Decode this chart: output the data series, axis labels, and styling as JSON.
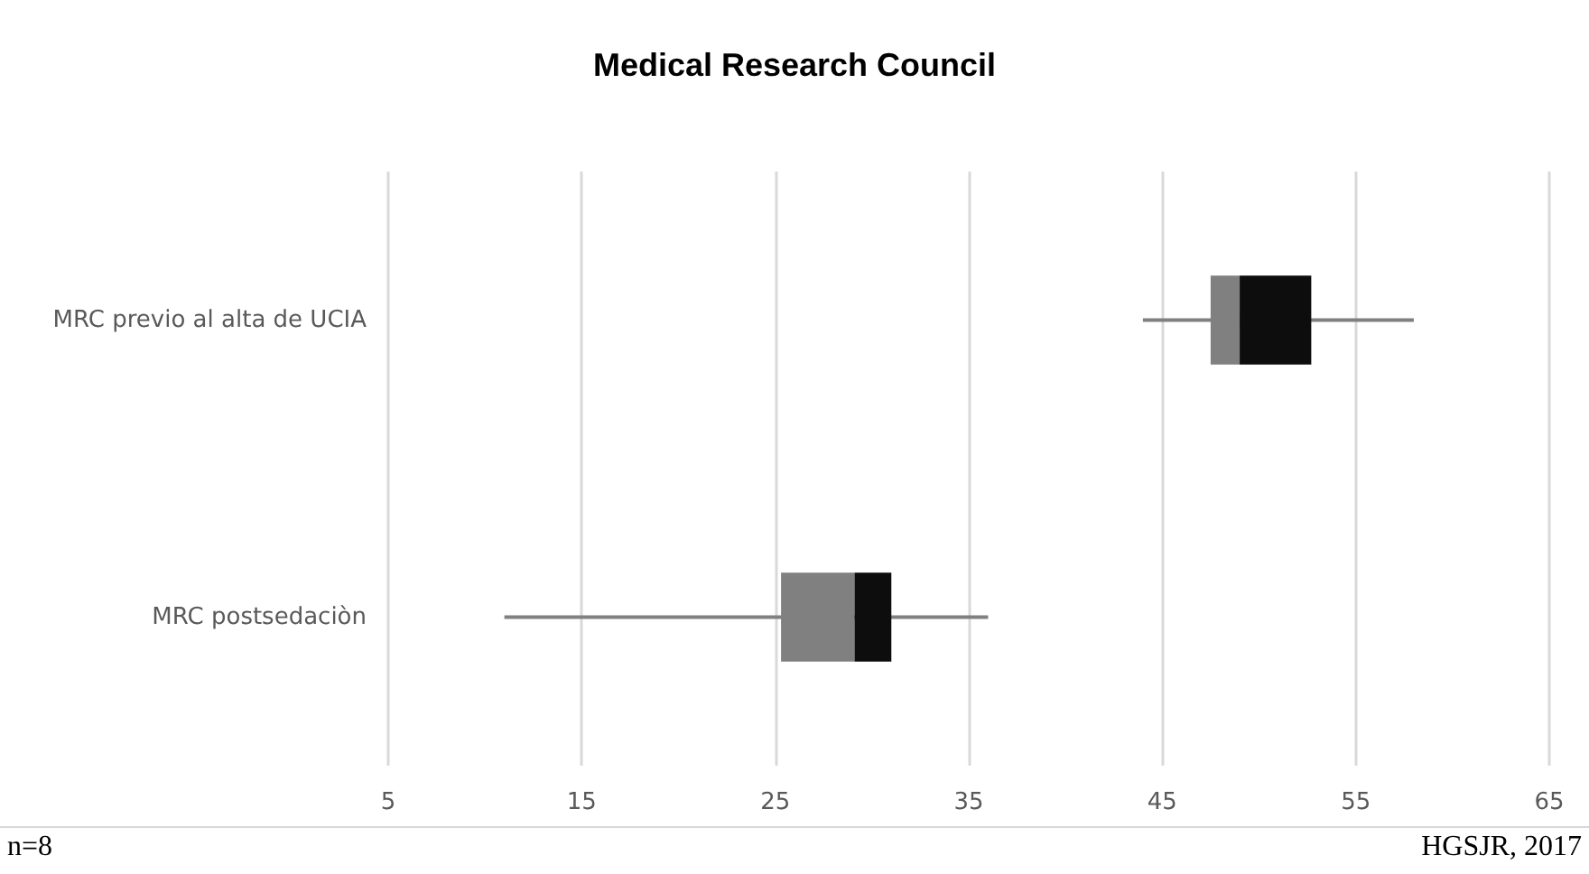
{
  "chart_data": {
    "type": "box",
    "title": "Medical Research Council",
    "orientation": "horizontal",
    "categories": [
      "MRC previo al alta de UCIA",
      "MRC postsedaciòn"
    ],
    "boxes": [
      {
        "low": 44,
        "q1": 47.5,
        "median": 49,
        "q3": 52.7,
        "high": 58
      },
      {
        "low": 11,
        "q1": 25.3,
        "median": 29.1,
        "q3": 31,
        "high": 36
      }
    ],
    "color": "#808080",
    "xlim": [
      5,
      65
    ],
    "xticks": [
      5,
      15,
      25,
      35,
      45,
      55,
      65
    ],
    "grid": "x",
    "annotations": [
      "n=8",
      "HGSJR, 2017"
    ]
  }
}
